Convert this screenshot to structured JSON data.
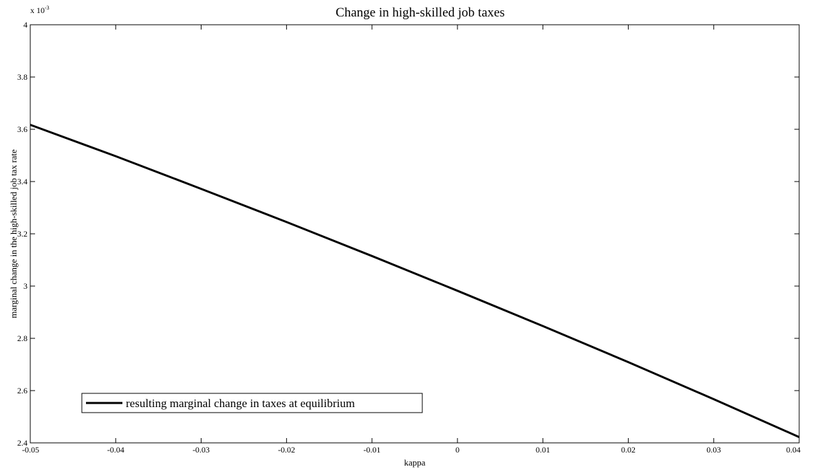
{
  "chart_data": {
    "type": "line",
    "title": "Change in high-skilled job taxes",
    "xlabel": "kappa",
    "ylabel": "marginal change in the high-skilled job tax rate",
    "exponent_base": "x 10",
    "exponent_power": "-3",
    "xlim": [
      -0.05,
      0.04
    ],
    "ylim": [
      2.4,
      4.0
    ],
    "x_ticks": [
      "-0.05",
      "-0.04",
      "-0.03",
      "-0.02",
      "-0.01",
      "0",
      "0.01",
      "0.02",
      "0.03",
      "0.04"
    ],
    "y_ticks": [
      "2.4",
      "2.6",
      "2.8",
      "3",
      "3.2",
      "3.4",
      "3.6",
      "3.8",
      "4"
    ],
    "grid": false,
    "legend_position": "bottom-left",
    "series": [
      {
        "name": "resulting marginal change in taxes at equilibrium",
        "color": "#000000",
        "x": [
          -0.05,
          -0.04,
          -0.03,
          -0.02,
          -0.01,
          0,
          0.01,
          0.02,
          0.03,
          0.04
        ],
        "y": [
          3.617,
          3.497,
          3.372,
          3.245,
          3.115,
          2.982,
          2.847,
          2.709,
          2.567,
          2.422
        ]
      }
    ]
  }
}
